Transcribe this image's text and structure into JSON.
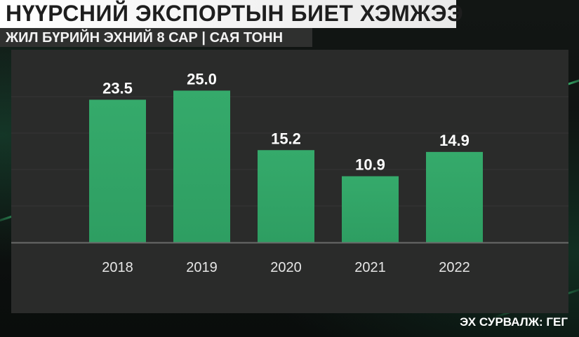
{
  "header": {
    "title": "НҮҮРСНИЙ ЭКСПОРТЫН БИЕТ ХЭМЖЭЭ",
    "subtitle": "ЖИЛ БҮРИЙН ЭХНИЙ 8 САР | САЯ ТОНН"
  },
  "footer": {
    "source": "ЭХ СУРВАЛЖ: ГЕГ"
  },
  "colors": {
    "bar": "#2e9e62",
    "bar_top": "#35aa6b",
    "panel": "#2a2b2a",
    "gridline": "#4a4b4a",
    "axis_text": "#e6e6e6",
    "value_text": "#ffffff"
  },
  "chart_data": {
    "type": "bar",
    "categories": [
      "2018",
      "2019",
      "2020",
      "2021",
      "2022"
    ],
    "values": [
      23.5,
      25.0,
      15.2,
      10.9,
      14.9
    ],
    "value_labels": [
      "23.5",
      "25.0",
      "15.2",
      "10.9",
      "14.9"
    ],
    "ylim": [
      0,
      30
    ],
    "grid": true
  }
}
